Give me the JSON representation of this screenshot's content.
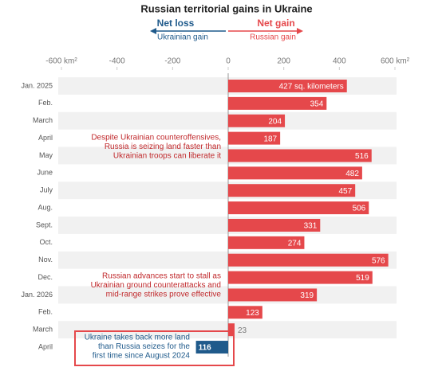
{
  "chart_data": {
    "type": "bar",
    "orientation": "horizontal",
    "title": "Russian territorial gains in Ukraine",
    "legend": {
      "negative": "Net loss",
      "negative_sub": "Ukrainian gain",
      "positive": "Net gain",
      "positive_sub": "Russian gain"
    },
    "categories": [
      "Jan. 2025",
      "Feb.",
      "March",
      "April",
      "May",
      "June",
      "July",
      "Aug.",
      "Sept.",
      "Oct.",
      "Nov.",
      "Dec.",
      "Jan. 2026",
      "Feb.",
      "March",
      "April"
    ],
    "values": [
      427,
      354,
      204,
      187,
      516,
      482,
      457,
      506,
      331,
      274,
      576,
      519,
      319,
      123,
      23,
      -116
    ],
    "value_labels": [
      "427 sq. kilometers",
      "354",
      "204",
      "187",
      "516",
      "482",
      "457",
      "506",
      "331",
      "274",
      "576",
      "519",
      "319",
      "123",
      "23",
      "116"
    ],
    "positive_color": "#e5484b",
    "negative_color": "#1f5a8b",
    "xlim": [
      -600,
      600
    ],
    "xticks": [
      {
        "value": -600,
        "label": "-600 km²"
      },
      -400,
      -200,
      0,
      200,
      400,
      {
        "value": 600,
        "label": "600 km²"
      }
    ],
    "annotations": [
      {
        "lines": [
          "Despite Ukrainian counteroffensives,",
          "Russia is seizing land faster than",
          "Ukrainian troops can liberate it"
        ]
      },
      {
        "lines": [
          "Russian advances start to stall as",
          "Ukrainian ground counterattacks and",
          "mid-range strikes prove effective"
        ]
      },
      {
        "lines": [
          "Ukraine takes back more land",
          "than Russia seizes for the",
          "first time since August 2024"
        ]
      }
    ]
  }
}
